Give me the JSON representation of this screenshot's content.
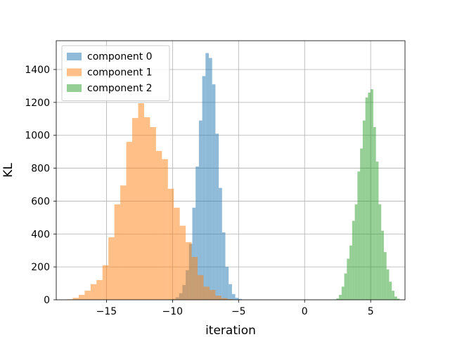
{
  "chart_data": {
    "type": "histogram",
    "xlabel": "iteration",
    "ylabel": "KL",
    "xlim": [
      -18.8,
      7.6
    ],
    "ylim": [
      0,
      1575
    ],
    "xticks": [
      -15,
      -10,
      -5,
      0,
      5
    ],
    "xtick_labels": [
      "−15",
      "−10",
      "−5",
      "0",
      "5"
    ],
    "yticks": [
      0,
      200,
      400,
      600,
      800,
      1000,
      1200,
      1400
    ],
    "ytick_labels": [
      "0",
      "200",
      "400",
      "600",
      "800",
      "1000",
      "1200",
      "1400"
    ],
    "grid": true,
    "legend_position": "upper-left",
    "bar_opacity": 0.5,
    "series": [
      {
        "name": "component 0",
        "color": "#1f77b4",
        "bin_start": -10.25,
        "bin_width": 0.25,
        "values": [
          2,
          5,
          15,
          40,
          90,
          180,
          340,
          560,
          810,
          1090,
          1360,
          1500,
          1470,
          1310,
          1010,
          680,
          410,
          200,
          95,
          35,
          12,
          5,
          2
        ]
      },
      {
        "name": "component 1",
        "color": "#ff7f0e",
        "bin_start": -18.0,
        "bin_width": 0.45,
        "values": [
          3,
          12,
          30,
          55,
          95,
          120,
          210,
          380,
          580,
          695,
          960,
          1105,
          1195,
          1110,
          1050,
          905,
          855,
          675,
          560,
          450,
          350,
          260,
          150,
          80,
          60,
          25,
          10,
          4
        ]
      },
      {
        "name": "component 2",
        "color": "#2ca02c",
        "bin_start": 2.2,
        "bin_width": 0.2,
        "values": [
          2,
          8,
          30,
          80,
          160,
          250,
          330,
          480,
          580,
          780,
          920,
          1090,
          1230,
          1260,
          1280,
          1050,
          840,
          580,
          420,
          290,
          185,
          110,
          55,
          20,
          7
        ]
      }
    ]
  }
}
